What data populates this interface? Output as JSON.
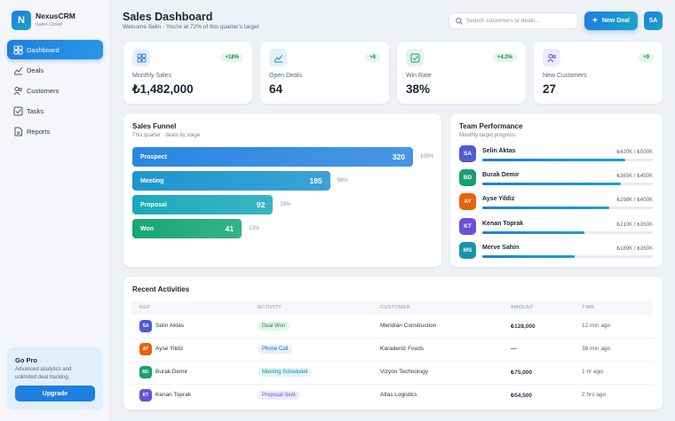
{
  "sidebar": {
    "logo": "N",
    "brand": "NexusCRM",
    "brand_sub": "Sales Cloud",
    "nav": [
      "Dashboard",
      "Deals",
      "Customers",
      "Tasks",
      "Reports"
    ],
    "promo": {
      "title": "Go Pro",
      "text": "Advanced analytics and unlimited deal tracking.",
      "button": "Upgrade"
    }
  },
  "header": {
    "title": "Sales Dashboard",
    "subtitle": "Welcome Selin · You're at 72% of this quarter's target",
    "search_placeholder": "Search customers or deals...",
    "button": "New Deal",
    "avatar": "SA"
  },
  "kpis": [
    {
      "label": "Monthly Sales",
      "value": "₺1,482,000",
      "change": "+18%",
      "color": "#2a7de1"
    },
    {
      "label": "Open Deals",
      "value": "64",
      "change": "+6",
      "color": "#1497a8"
    },
    {
      "label": "Win Rate",
      "value": "38%",
      "change": "+4.2%",
      "color": "#1a9e6e"
    },
    {
      "label": "New Customers",
      "value": "27",
      "change": "+9",
      "color": "#6d4fd8"
    }
  ],
  "funnel": {
    "title": "Sales Funnel",
    "subtitle": "This quarter · deals by stage",
    "stages": [
      {
        "name": "Prospect",
        "count": 320,
        "percent": "100%",
        "color": "#2b86e0"
      },
      {
        "name": "Meeting",
        "count": 185,
        "percent": "58%",
        "color": "#1d95cf"
      },
      {
        "name": "Proposal",
        "count": 92,
        "percent": "29%",
        "color": "#1aaabb"
      },
      {
        "name": "Won",
        "count": 41,
        "percent": "13%",
        "color": "#17a772"
      }
    ]
  },
  "team": {
    "title": "Team Performance",
    "subtitle": "Monthly target progress",
    "members": [
      {
        "initials": "SA",
        "name": "Selin Aktas",
        "current": 420,
        "target": 500,
        "label": "₺420K / ₺500K",
        "color": "#4f5bd5"
      },
      {
        "initials": "BD",
        "name": "Burak Demir",
        "current": 365,
        "target": 450,
        "label": "₺365K / ₺450K",
        "color": "#1a9e6e"
      },
      {
        "initials": "AY",
        "name": "Ayse Yildiz",
        "current": 298,
        "target": 400,
        "label": "₺298K / ₺400K",
        "color": "#e8620c"
      },
      {
        "initials": "KT",
        "name": "Kenan Toprak",
        "current": 210,
        "target": 350,
        "label": "₺210K / ₺350K",
        "color": "#6d4fd8"
      },
      {
        "initials": "MS",
        "name": "Merve Sahin",
        "current": 189,
        "target": 350,
        "label": "₺189K / ₺350K",
        "color": "#1497a8"
      }
    ]
  },
  "activities": {
    "title": "Recent Activities",
    "columns": [
      "REP",
      "ACTIVITY",
      "CUSTOMER",
      "AMOUNT",
      "TIME"
    ],
    "rows": [
      {
        "initials": "SA",
        "rep": "Selin Aktas",
        "activity": "Deal Won",
        "customer": "Meridian Construction",
        "amount": "₺128,000",
        "time": "12 min ago",
        "color": "#4f5bd5",
        "badge_color": "#1a8a4f",
        "badge_bg": "#e3f6ea"
      },
      {
        "initials": "AY",
        "rep": "Ayse Yildiz",
        "activity": "Phone Call",
        "customer": "Karadeniz Foods",
        "amount": "—",
        "time": "38 min ago",
        "color": "#e8620c",
        "badge_color": "#2a6fd1",
        "badge_bg": "#e5effc"
      },
      {
        "initials": "BD",
        "rep": "Burak Demir",
        "activity": "Meeting Scheduled",
        "customer": "Vizyon Technology",
        "amount": "₺75,000",
        "time": "1 hr ago",
        "color": "#1a9e6e",
        "badge_color": "#128a98",
        "badge_bg": "#e0f5f7"
      },
      {
        "initials": "KT",
        "rep": "Kenan Toprak",
        "activity": "Proposal Sent",
        "customer": "Atlas Logistics",
        "amount": "₺54,500",
        "time": "2 hrs ago",
        "color": "#6d4fd8",
        "badge_color": "#6d4fd8",
        "badge_bg": "#efeafc"
      }
    ]
  }
}
